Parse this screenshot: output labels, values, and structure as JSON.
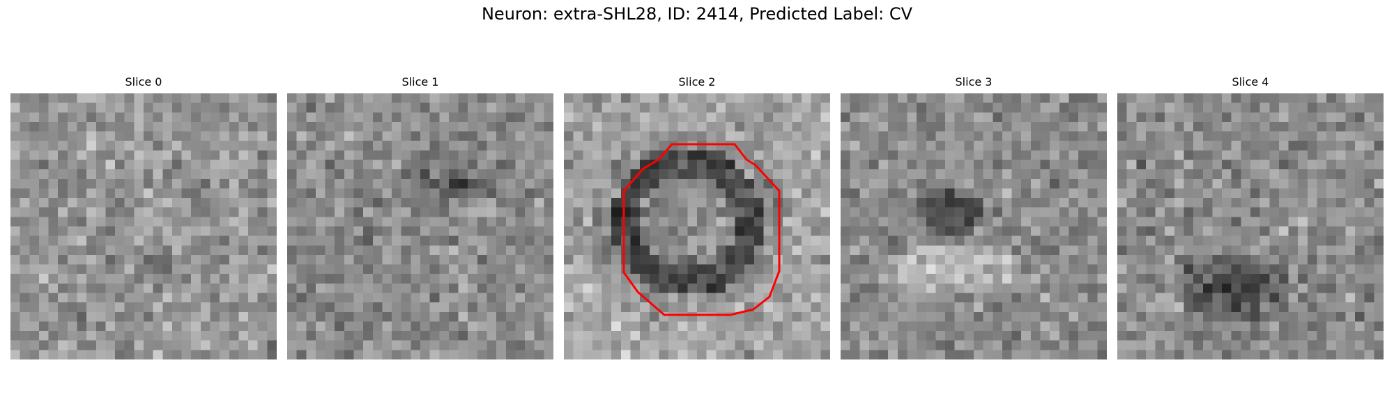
{
  "figure": {
    "title": "Neuron: extra-SHL28, ID: 2414, Predicted Label: CV"
  },
  "slices": [
    {
      "title": "Slice 0",
      "pattern": "noise",
      "contour": false
    },
    {
      "title": "Slice 1",
      "pattern": "dark-band",
      "contour": false
    },
    {
      "title": "Slice 2",
      "pattern": "ring",
      "contour": true
    },
    {
      "title": "Slice 3",
      "pattern": "dark-blob-upper",
      "contour": false
    },
    {
      "title": "Slice 4",
      "pattern": "dark-blob-lower",
      "contour": false
    }
  ],
  "style": {
    "contour_color": "#ff0000",
    "colormap": "gray"
  }
}
